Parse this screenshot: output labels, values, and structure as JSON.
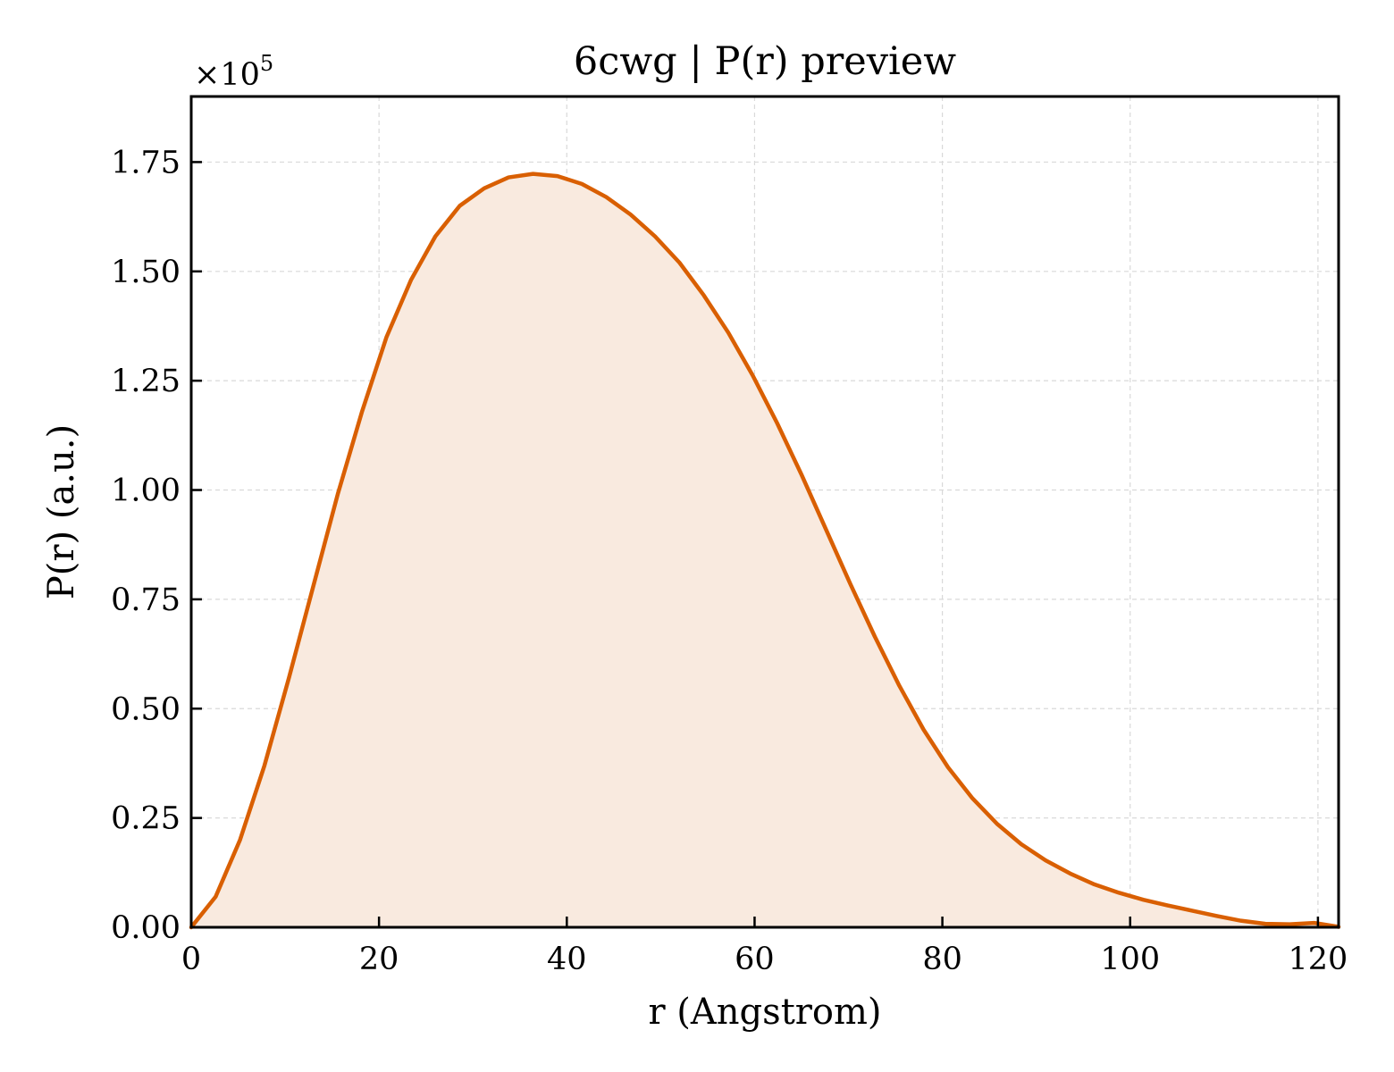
{
  "chart_data": {
    "type": "area",
    "title": "6cwg | P(r) preview",
    "xlabel": "r (Angstrom)",
    "ylabel": "P(r) (a.u.)",
    "y_offset_label": {
      "base": "×10",
      "exponent": "5"
    },
    "y_scale_factor": 100000,
    "xlim": [
      0,
      122.2
    ],
    "ylim": [
      0,
      1.9
    ],
    "x_ticks": [
      0,
      20,
      40,
      60,
      80,
      100,
      120
    ],
    "x_tick_labels": [
      "0",
      "20",
      "40",
      "60",
      "80",
      "100",
      "120"
    ],
    "y_ticks": [
      0,
      0.25,
      0.5,
      0.75,
      1.0,
      1.25,
      1.5,
      1.75
    ],
    "y_tick_labels": [
      "0.00",
      "0.25",
      "0.50",
      "0.75",
      "1.00",
      "1.25",
      "1.50",
      "1.75"
    ],
    "grid": true,
    "legend": "none",
    "series": [
      {
        "color": "#d95f02",
        "fill_color": "#f9eadf",
        "x": [
          0,
          2.6,
          5.2,
          7.8,
          10.4,
          13.0,
          15.6,
          18.2,
          20.8,
          23.4,
          26.0,
          28.6,
          31.2,
          33.8,
          36.4,
          39.0,
          41.6,
          44.2,
          46.8,
          49.4,
          52.0,
          54.6,
          57.2,
          59.8,
          62.4,
          65.0,
          67.6,
          70.2,
          72.8,
          75.4,
          78.0,
          80.6,
          83.2,
          85.8,
          88.4,
          91.0,
          93.6,
          96.2,
          98.8,
          101.4,
          104.0,
          106.6,
          109.2,
          111.8,
          114.4,
          117.0,
          119.6,
          122.2
        ],
        "y": [
          0.0,
          0.07,
          0.2,
          0.37,
          0.57,
          0.78,
          0.99,
          1.18,
          1.35,
          1.48,
          1.58,
          1.65,
          1.69,
          1.715,
          1.723,
          1.718,
          1.7,
          1.67,
          1.63,
          1.58,
          1.52,
          1.445,
          1.36,
          1.262,
          1.153,
          1.035,
          0.91,
          0.785,
          0.665,
          0.553,
          0.452,
          0.366,
          0.295,
          0.237,
          0.19,
          0.153,
          0.123,
          0.098,
          0.079,
          0.063,
          0.05,
          0.038,
          0.026,
          0.015,
          0.008,
          0.007,
          0.01,
          0.001
        ]
      }
    ]
  }
}
